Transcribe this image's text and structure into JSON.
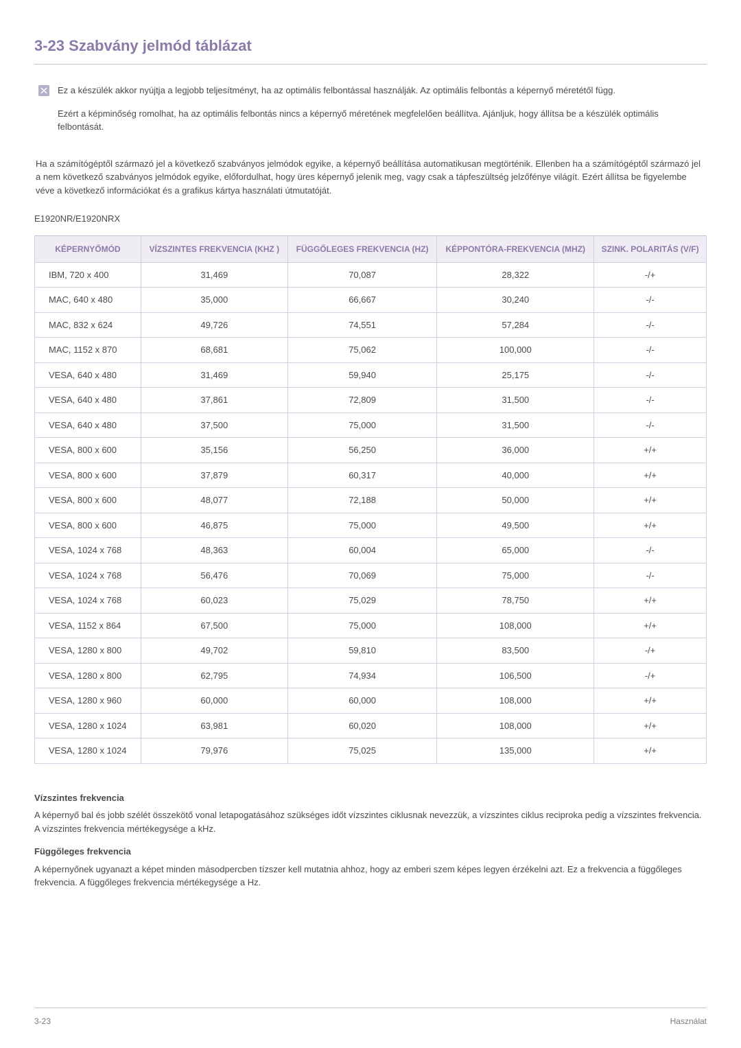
{
  "heading": "3-23  Szabvány jelmód táblázat",
  "note1": "Ez a készülék akkor nyújtja a legjobb teljesítményt, ha az optimális felbontással használják. Az optimális felbontás a képernyő méretétől függ.",
  "note2": "Ezért a képminőség romolhat, ha az optimális felbontás nincs a képernyő méretének megfelelően beállítva. Ajánljuk, hogy állítsa be a készülék optimális felbontását.",
  "body": "Ha a számítógéptől származó jel a következő szabványos jelmódok egyike, a képernyő beállítása automatikusan megtörténik. Ellenben ha a számítógéptől származó jel a nem következő szabványos jelmódok egyike, előfordulhat, hogy üres képernyő jelenik meg, vagy csak a tápfeszültség jelzőfénye világít. Ezért állítsa be figyelembe véve a következő információkat és a grafikus kártya használati útmutatóját.",
  "model": "E1920NR/E1920NRX",
  "table": {
    "headers": {
      "mode": "KÉPERNYŐMÓD",
      "hfreq": "VÍZSZINTES FREKVENCIA (KHZ )",
      "vfreq": "FÜGGŐLEGES FREKVENCIA (HZ)",
      "pclk": "KÉPPONTÓRA-FREKVENCIA (MHZ)",
      "pol": "SZINK. POLARITÁS (V/F)"
    },
    "rows": [
      [
        "IBM, 720 x 400",
        "31,469",
        "70,087",
        "28,322",
        "-/+"
      ],
      [
        "MAC, 640 x 480",
        "35,000",
        "66,667",
        "30,240",
        "-/-"
      ],
      [
        "MAC, 832 x 624",
        "49,726",
        "74,551",
        "57,284",
        "-/-"
      ],
      [
        "MAC, 1152 x 870",
        "68,681",
        "75,062",
        "100,000",
        "-/-"
      ],
      [
        "VESA, 640 x 480",
        "31,469",
        "59,940",
        "25,175",
        "-/-"
      ],
      [
        "VESA, 640 x 480",
        "37,861",
        "72,809",
        "31,500",
        "-/-"
      ],
      [
        "VESA, 640 x 480",
        "37,500",
        "75,000",
        "31,500",
        "-/-"
      ],
      [
        "VESA, 800 x 600",
        "35,156",
        "56,250",
        "36,000",
        "+/+"
      ],
      [
        "VESA, 800 x 600",
        "37,879",
        "60,317",
        "40,000",
        "+/+"
      ],
      [
        "VESA, 800 x 600",
        "48,077",
        "72,188",
        "50,000",
        "+/+"
      ],
      [
        "VESA, 800 x 600",
        "46,875",
        "75,000",
        "49,500",
        "+/+"
      ],
      [
        "VESA, 1024 x 768",
        "48,363",
        "60,004",
        "65,000",
        "-/-"
      ],
      [
        "VESA, 1024 x 768",
        "56,476",
        "70,069",
        "75,000",
        "-/-"
      ],
      [
        "VESA, 1024 x 768",
        "60,023",
        "75,029",
        "78,750",
        "+/+"
      ],
      [
        "VESA, 1152 x 864",
        "67,500",
        "75,000",
        "108,000",
        "+/+"
      ],
      [
        "VESA, 1280 x 800",
        "49,702",
        "59,810",
        "83,500",
        "-/+"
      ],
      [
        "VESA, 1280 x 800",
        "62,795",
        "74,934",
        "106,500",
        "-/+"
      ],
      [
        "VESA, 1280 x 960",
        "60,000",
        "60,000",
        "108,000",
        "+/+"
      ],
      [
        "VESA, 1280 x 1024",
        "63,981",
        "60,020",
        "108,000",
        "+/+"
      ],
      [
        "VESA, 1280 x 1024",
        "79,976",
        "75,025",
        "135,000",
        "+/+"
      ]
    ]
  },
  "hfreq_title": "Vízszintes frekvencia",
  "hfreq_body": "A képernyő bal és jobb szélét összekötő vonal letapogatásához szükséges időt vízszintes ciklusnak nevezzük, a vízszintes ciklus reciproka pedig a vízszintes frekvencia. A vízszintes frekvencia mértékegysége a kHz.",
  "vfreq_title": "Függőleges frekvencia",
  "vfreq_body": "A képernyőnek ugyanazt a képet minden másodpercben tízszer kell mutatnia ahhoz, hogy az emberi szem képes legyen érzékelni azt. Ez a frekvencia a függőleges frekvencia. A függőleges frekvencia mértékegysége a Hz.",
  "footer_left": "3-23",
  "footer_right": "Használat"
}
